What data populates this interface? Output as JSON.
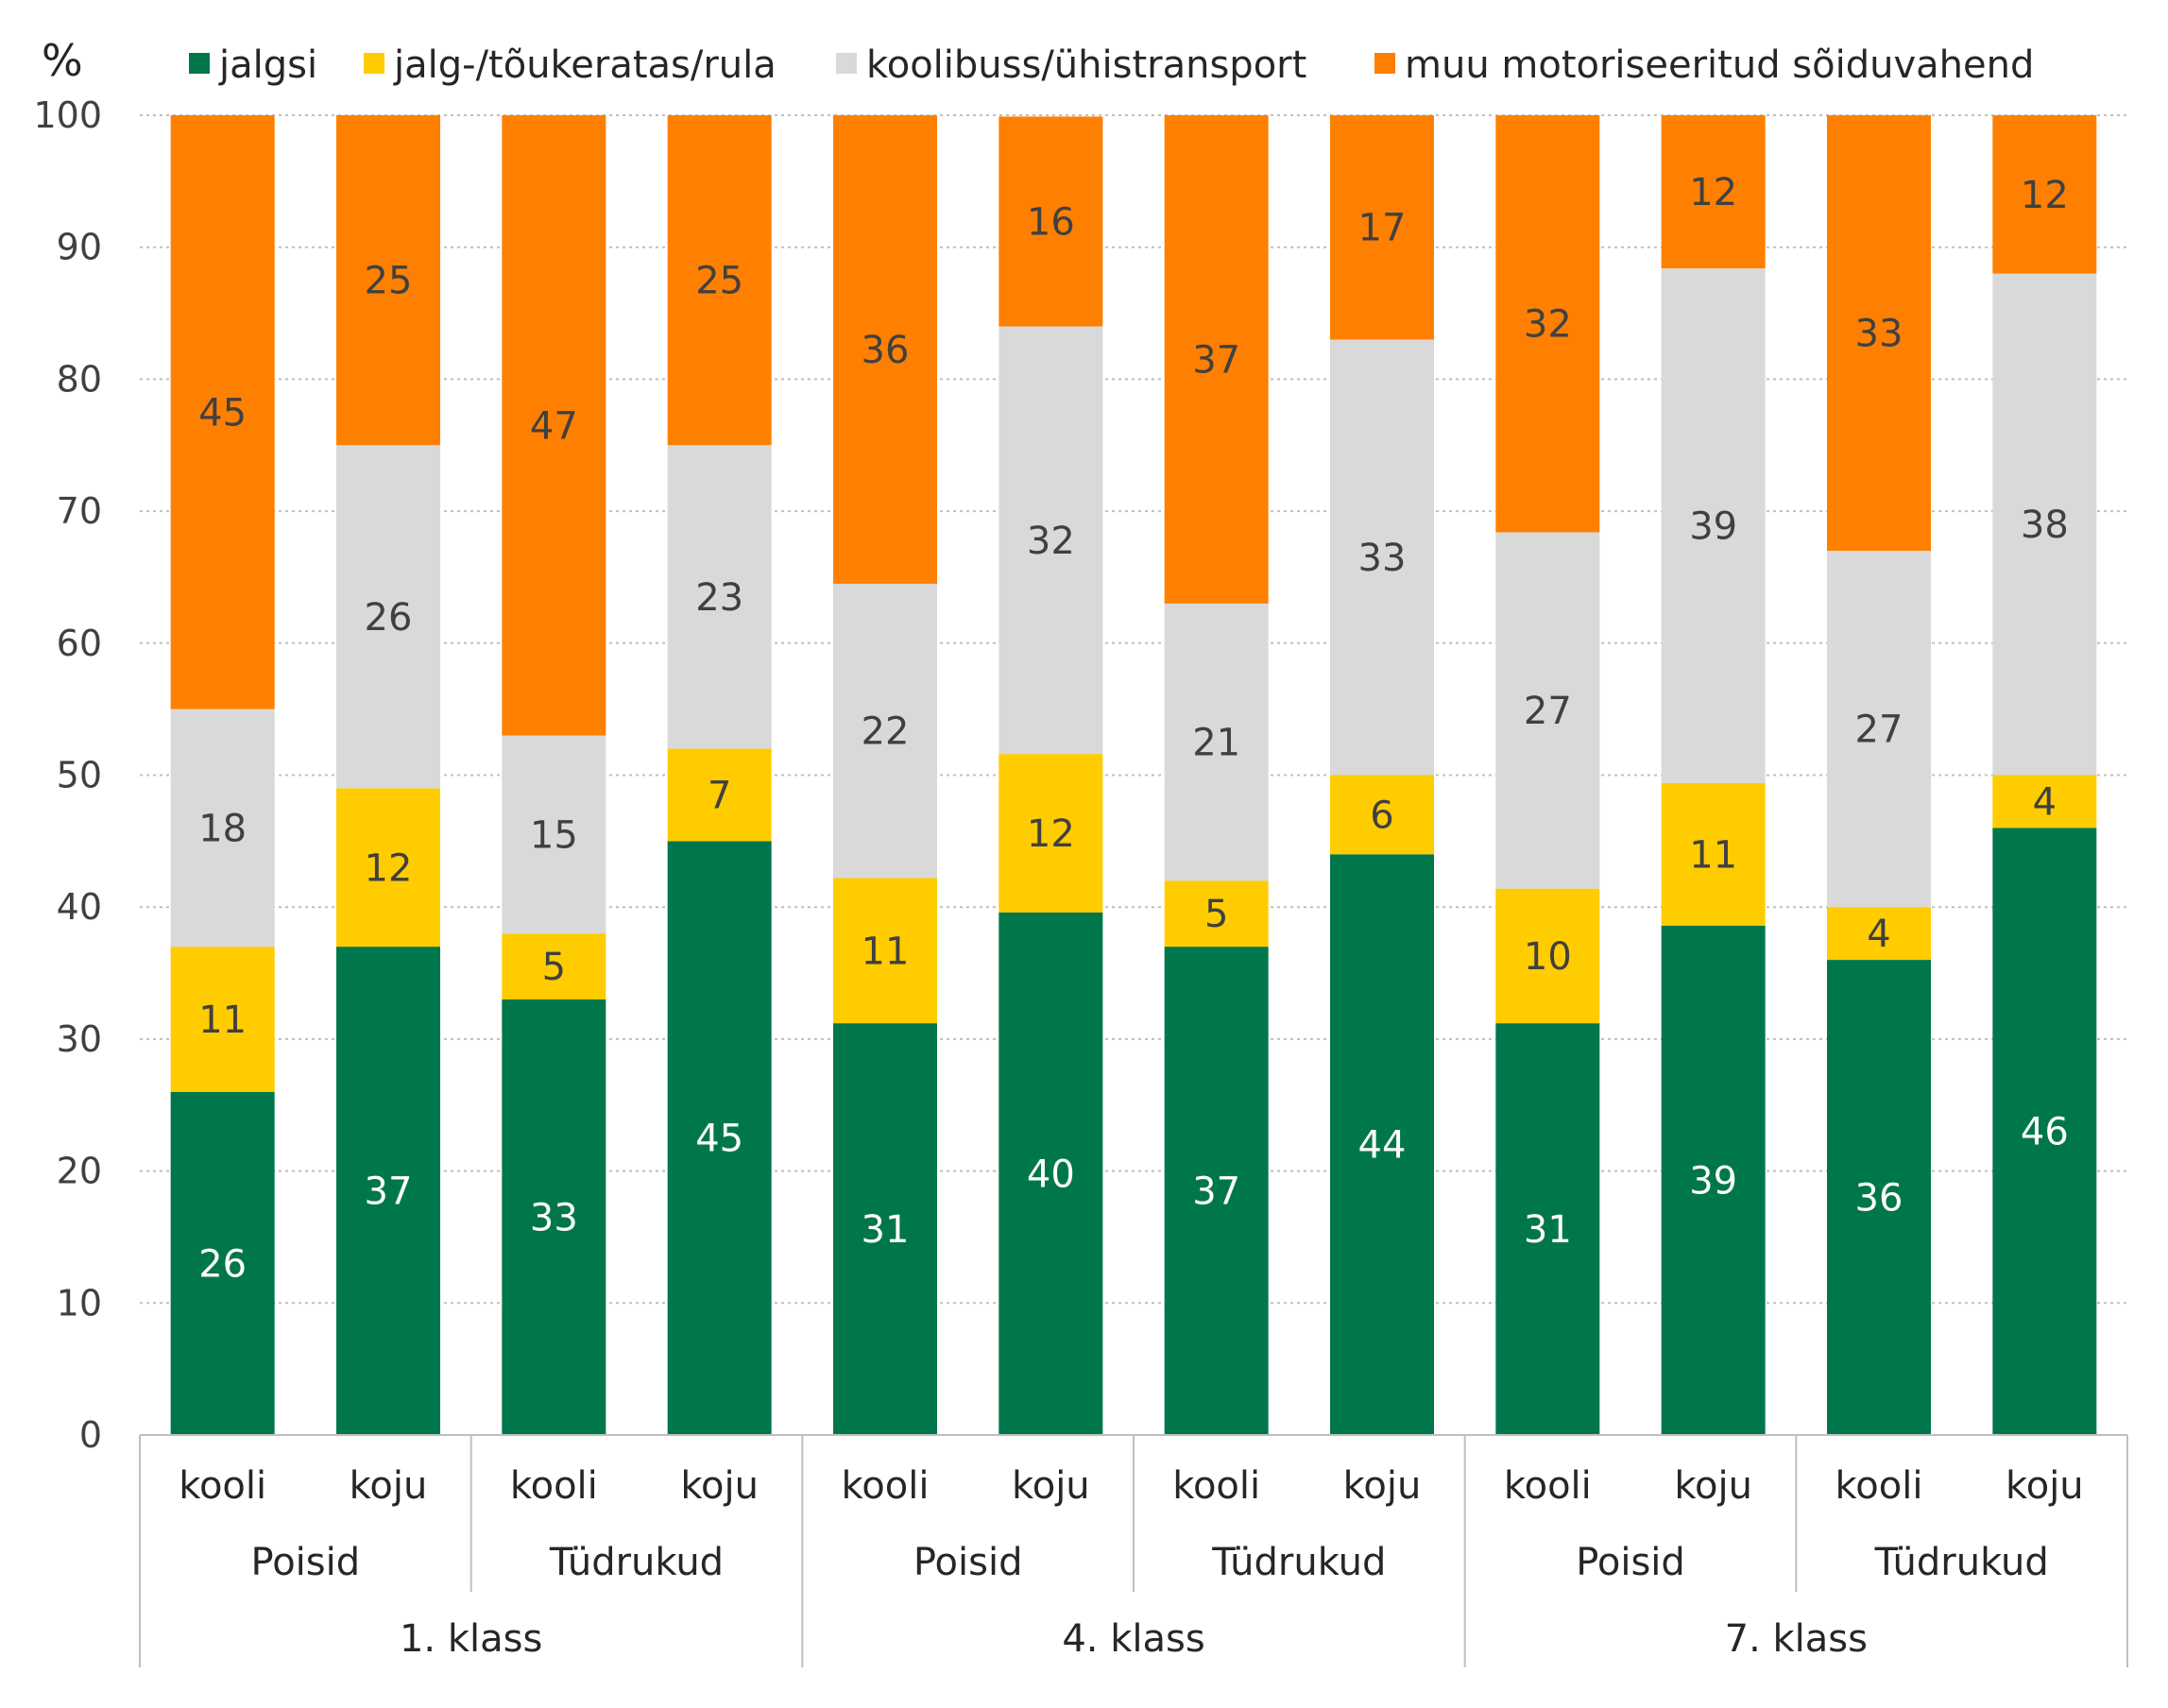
{
  "chart_data": {
    "type": "bar",
    "stacked": true,
    "y_unit_label": "%",
    "ylim": [
      0,
      100
    ],
    "y_ticks": [
      0,
      10,
      20,
      30,
      40,
      50,
      60,
      70,
      80,
      90,
      100
    ],
    "grid": true,
    "legend_position": "top",
    "categories": [
      {
        "direction": "kooli",
        "gender": "Poisid",
        "grade": "1. klass"
      },
      {
        "direction": "koju",
        "gender": "Poisid",
        "grade": "1. klass"
      },
      {
        "direction": "kooli",
        "gender": "Tüdrukud",
        "grade": "1. klass"
      },
      {
        "direction": "koju",
        "gender": "Tüdrukud",
        "grade": "1. klass"
      },
      {
        "direction": "kooli",
        "gender": "Poisid",
        "grade": "4. klass"
      },
      {
        "direction": "koju",
        "gender": "Poisid",
        "grade": "4. klass"
      },
      {
        "direction": "kooli",
        "gender": "Tüdrukud",
        "grade": "4. klass"
      },
      {
        "direction": "koju",
        "gender": "Tüdrukud",
        "grade": "4. klass"
      },
      {
        "direction": "kooli",
        "gender": "Poisid",
        "grade": "7. klass"
      },
      {
        "direction": "koju",
        "gender": "Poisid",
        "grade": "7. klass"
      },
      {
        "direction": "kooli",
        "gender": "Tüdrukud",
        "grade": "7. klass"
      },
      {
        "direction": "koju",
        "gender": "Tüdrukud",
        "grade": "7. klass"
      }
    ],
    "gender_groups": [
      "Poisid",
      "Tüdrukud",
      "Poisid",
      "Tüdrukud",
      "Poisid",
      "Tüdrukud"
    ],
    "grade_groups": [
      "1. klass",
      "4. klass",
      "7. klass"
    ],
    "series": [
      {
        "name": "jalgsi",
        "color": "#00774A",
        "label_color": "#ffffff",
        "values": [
          26,
          37,
          33,
          45,
          31.2,
          39.6,
          37,
          44,
          31.2,
          38.6,
          36,
          46
        ],
        "labels": [
          "26",
          "37",
          "33",
          "45",
          "31",
          "40",
          "37",
          "44",
          "31",
          "39",
          "36",
          "46"
        ]
      },
      {
        "name": "jalg-/tõukeratas/rula",
        "color": "#FFCC00",
        "label_color": "#404040",
        "values": [
          11,
          12,
          5,
          7,
          11,
          12,
          5,
          6,
          10.2,
          10.8,
          4,
          4
        ],
        "labels": [
          "11",
          "12",
          "5",
          "7",
          "11",
          "12",
          "5",
          "6",
          "10",
          "11",
          "4",
          "4"
        ]
      },
      {
        "name": "koolibuss/ühistransport",
        "color": "#D9D9D9",
        "label_color": "#404040",
        "values": [
          18,
          26,
          15,
          23,
          22.3,
          32.4,
          21,
          33,
          27,
          39,
          27,
          38
        ],
        "labels": [
          "18",
          "26",
          "15",
          "23",
          "22",
          "32",
          "21",
          "33",
          "27",
          "39",
          "27",
          "38"
        ]
      },
      {
        "name": "muu motoriseeritud sõiduvahend",
        "color": "#FF8000",
        "label_color": "#404040",
        "values": [
          45,
          25,
          47,
          25,
          35.5,
          15.9,
          37,
          17,
          31.6,
          11.6,
          33,
          12
        ],
        "labels": [
          "45",
          "25",
          "47",
          "25",
          "36",
          "16",
          "37",
          "17",
          "32",
          "12",
          "33",
          "12"
        ]
      }
    ]
  }
}
